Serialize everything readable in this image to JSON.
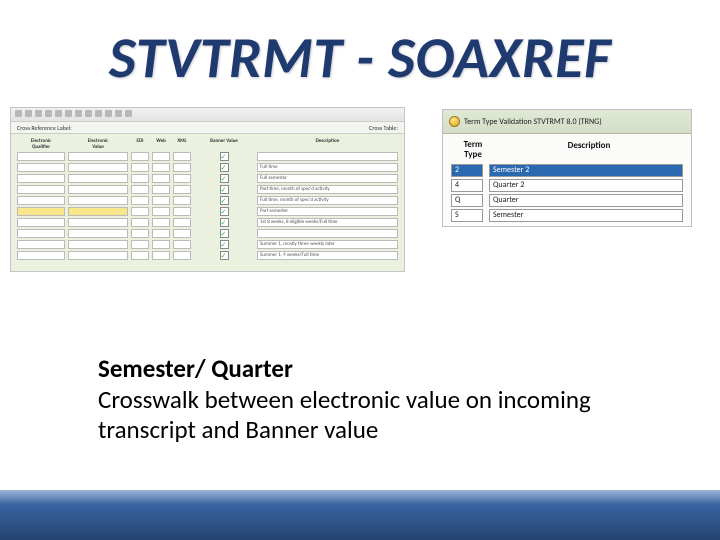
{
  "title": "STVTRMT - SOAXREF",
  "left_shot": {
    "subbar_left": "Cross Reference Label:",
    "subbar_right": "Cross Table:",
    "columns": [
      {
        "header": "Electronic\nQualifier",
        "w": "c1"
      },
      {
        "header": "Electronic\nValue",
        "w": "c2"
      },
      {
        "header": "EDI",
        "w": "c3"
      },
      {
        "header": "Web",
        "w": "c4"
      },
      {
        "header": "XML",
        "w": "c5"
      },
      {
        "header": "Banner Value",
        "w": "c6"
      },
      {
        "header": "Description",
        "w": "c7"
      }
    ],
    "rows": 10,
    "highlight_row": 5,
    "descriptions": [
      "",
      "Full time",
      "Full semester",
      "Part time, month of spec'd activity",
      "Full time, month of spec'd activity",
      "Part semester",
      "1st 8 weeks, 8 eligible weeks/Full time",
      "",
      "Summer 1, mostly three weekly later",
      "Summer 1, 4 weeks/Full time"
    ]
  },
  "right_shot": {
    "titlebar": "Term Type Validation STVTRMT 8.0 (TRNG)",
    "headers": [
      "Term\nType",
      "Description"
    ],
    "rows": [
      {
        "code": "2",
        "desc": "Semester 2",
        "hl": true
      },
      {
        "code": "4",
        "desc": "Quarter 2",
        "hl": false
      },
      {
        "code": "Q",
        "desc": "Quarter",
        "hl": false
      },
      {
        "code": "S",
        "desc": "Semester",
        "hl": false
      }
    ]
  },
  "body": {
    "line1": "Semester/ Quarter",
    "line2": "Crosswalk between electronic value on incoming transcript and Banner value"
  }
}
